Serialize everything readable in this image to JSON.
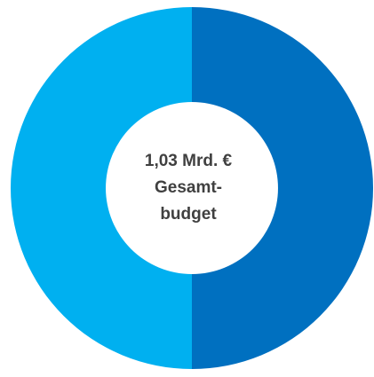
{
  "chart_data": {
    "type": "donut",
    "values": [
      50,
      50
    ],
    "colors": [
      "#0070c0",
      "#00b0f0"
    ],
    "center_label": [
      "1,03 Mrd. €",
      "Gesamt-",
      "budget"
    ]
  }
}
